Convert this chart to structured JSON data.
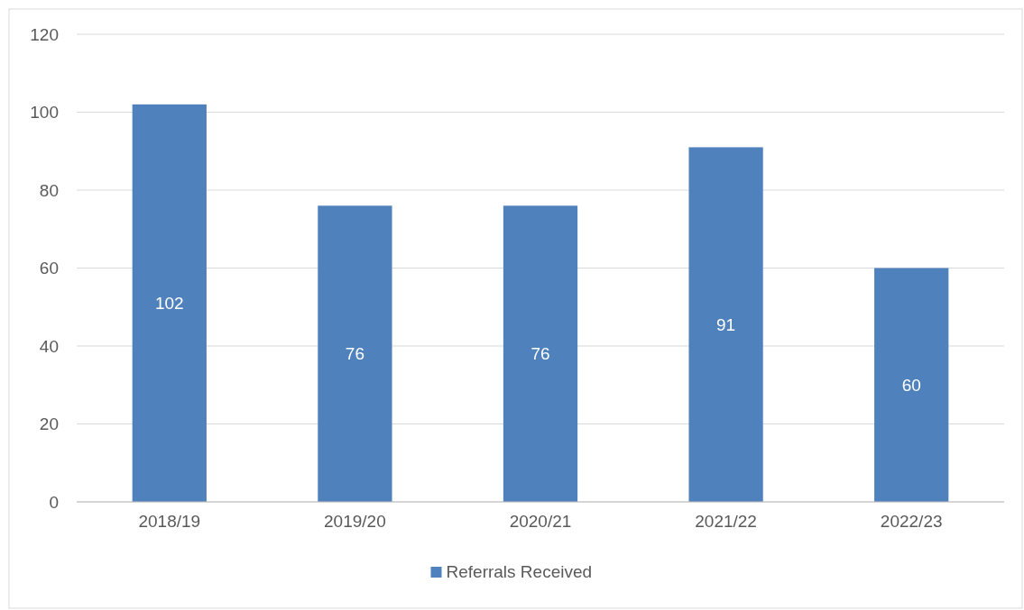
{
  "chart_data": {
    "type": "bar",
    "categories": [
      "2018/19",
      "2019/20",
      "2020/21",
      "2021/22",
      "2022/23"
    ],
    "series": [
      {
        "name": "Referrals Received",
        "color": "#4f81bd",
        "values": [
          102,
          76,
          76,
          91,
          60
        ]
      }
    ],
    "ylim": [
      0,
      120
    ],
    "yticks": [
      0,
      20,
      40,
      60,
      80,
      100,
      120
    ],
    "grid": "y",
    "legend": "bottom",
    "data_labels": true
  }
}
